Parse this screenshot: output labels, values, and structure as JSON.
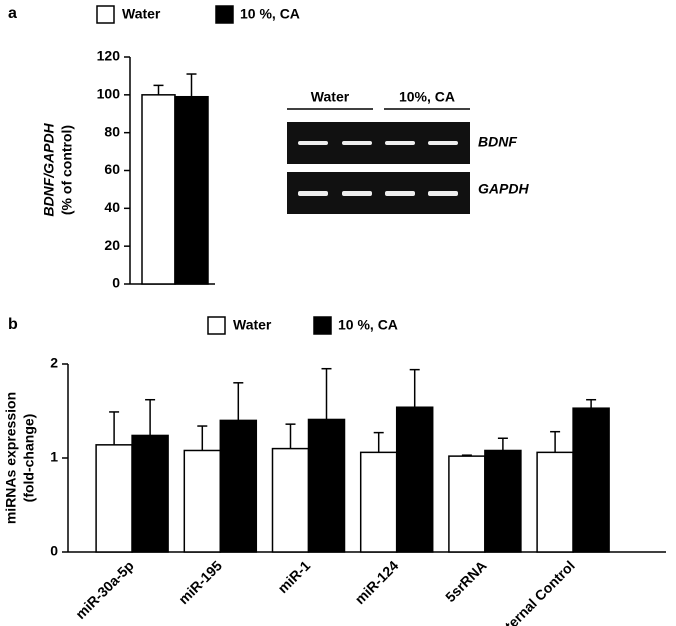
{
  "chart_data": [
    {
      "type": "bar",
      "panel": "a",
      "ylabel": [
        "BDNF/GAPDH",
        "(% of control)"
      ],
      "categories": [
        null
      ],
      "series": [
        {
          "name": "Water",
          "color": "#ffffff",
          "values": [
            100
          ],
          "errors": [
            5
          ]
        },
        {
          "name": "10 %, CA",
          "color": "#000000",
          "values": [
            99
          ],
          "errors": [
            12
          ]
        }
      ],
      "ylim": [
        0,
        120
      ],
      "yticks": [
        0,
        20,
        40,
        60,
        80,
        100,
        120
      ]
    },
    {
      "type": "bar",
      "panel": "b",
      "ylabel": [
        "miRNAs expression",
        "(fold-change)"
      ],
      "categories": [
        "miR-30a-5p",
        "miR-195",
        "miR-1",
        "miR-124",
        "5srRNA",
        "Internal Control"
      ],
      "series": [
        {
          "name": "Water",
          "color": "#ffffff",
          "values": [
            1.14,
            1.08,
            1.1,
            1.06,
            1.02,
            1.06
          ],
          "errors": [
            0.35,
            0.26,
            0.26,
            0.21,
            0.01,
            0.22
          ]
        },
        {
          "name": "10 %, CA",
          "color": "#000000",
          "values": [
            1.24,
            1.4,
            1.41,
            1.54,
            1.08,
            1.53
          ],
          "errors": [
            0.38,
            0.4,
            0.54,
            0.4,
            0.13,
            0.09
          ]
        }
      ],
      "ylim": [
        0,
        2
      ],
      "yticks": [
        0,
        1,
        2
      ]
    }
  ],
  "gel": {
    "groups": [
      "Water",
      "10%, CA"
    ],
    "rows": [
      "BDNF",
      "GAPDH"
    ]
  }
}
